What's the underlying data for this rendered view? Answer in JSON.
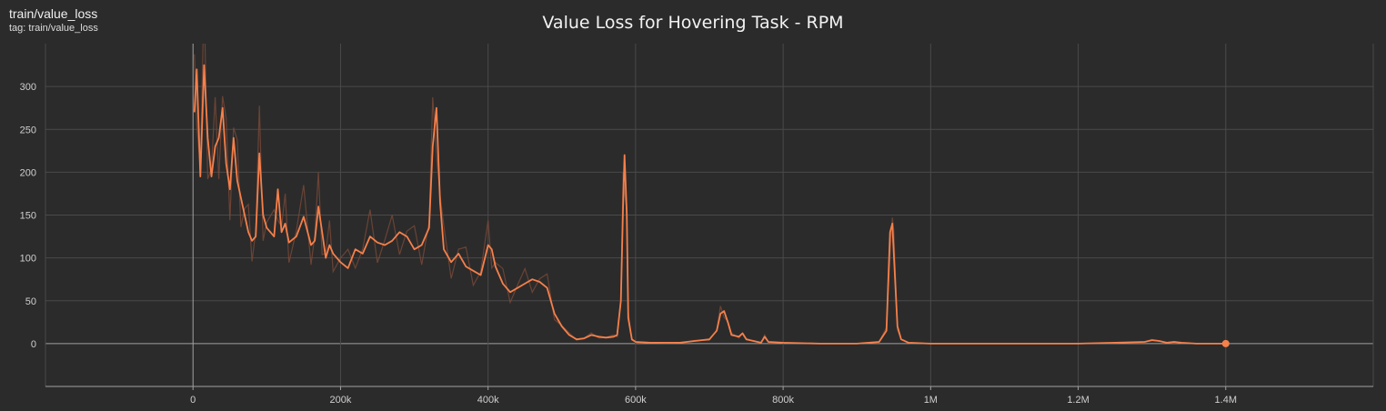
{
  "header": {
    "card_title": "train/value_loss",
    "tag_label": "tag: train/value_loss"
  },
  "chart_data": {
    "type": "line",
    "title": "Value Loss for Hovering Task - RPM",
    "xlabel": "",
    "ylabel": "",
    "xlim": [
      -200000,
      1600000
    ],
    "ylim": [
      -50,
      350
    ],
    "x_ticks": [
      0,
      200000,
      400000,
      600000,
      800000,
      1000000,
      1200000,
      1400000
    ],
    "x_tick_labels": [
      "0",
      "200k",
      "400k",
      "600k",
      "800k",
      "1M",
      "1.2M",
      "1.4M"
    ],
    "y_ticks": [
      0,
      50,
      100,
      150,
      200,
      250,
      300
    ],
    "y_tick_labels": [
      "0",
      "50",
      "100",
      "150",
      "200",
      "250",
      "300"
    ],
    "grid": true,
    "colors": {
      "line": "#f5804b",
      "raw": "#7a4a38",
      "background": "#2b2b2b",
      "grid": "#4a4a4a",
      "axis": "#a0a0a0"
    },
    "series": [
      {
        "x": [
          2000,
          5000,
          10000,
          15000,
          20000,
          25000,
          30000,
          35000,
          40000,
          45000,
          50000,
          55000,
          60000,
          65000,
          70000,
          75000,
          80000,
          85000,
          90000,
          95000,
          100000,
          110000,
          115000,
          120000,
          125000,
          130000,
          140000,
          150000,
          160000,
          165000,
          170000,
          175000,
          180000,
          185000,
          190000,
          200000,
          210000,
          220000,
          230000,
          240000,
          250000,
          260000,
          270000,
          280000,
          290000,
          300000,
          310000,
          320000,
          325000,
          330000,
          335000,
          340000,
          350000,
          360000,
          370000,
          380000,
          390000,
          400000,
          405000,
          410000,
          420000,
          430000,
          440000,
          450000,
          460000,
          470000,
          480000,
          490000,
          500000,
          510000,
          520000,
          530000,
          540000,
          550000,
          560000,
          570000,
          575000,
          580000,
          583000,
          585000,
          588000,
          590000,
          595000,
          600000,
          620000,
          640000,
          660000,
          680000,
          700000,
          710000,
          715000,
          720000,
          725000,
          730000,
          740000,
          745000,
          750000,
          760000,
          770000,
          775000,
          780000,
          800000,
          850000,
          900000,
          930000,
          940000,
          945000,
          948000,
          950000,
          955000,
          960000,
          970000,
          1000000,
          1100000,
          1200000,
          1250000,
          1290000,
          1300000,
          1310000,
          1320000,
          1330000,
          1340000,
          1360000,
          1400000
        ],
        "y": [
          270,
          320,
          195,
          325,
          240,
          195,
          230,
          240,
          275,
          210,
          180,
          240,
          190,
          170,
          150,
          130,
          120,
          125,
          222,
          150,
          135,
          125,
          180,
          130,
          140,
          118,
          125,
          148,
          115,
          120,
          160,
          130,
          100,
          115,
          105,
          95,
          88,
          110,
          105,
          125,
          118,
          115,
          120,
          130,
          125,
          110,
          115,
          135,
          230,
          275,
          165,
          110,
          95,
          105,
          90,
          85,
          80,
          115,
          110,
          90,
          70,
          60,
          65,
          70,
          75,
          72,
          65,
          35,
          20,
          10,
          5,
          6,
          10,
          8,
          7,
          8,
          10,
          50,
          160,
          220,
          150,
          30,
          5,
          2,
          1,
          1,
          1,
          3,
          5,
          15,
          35,
          38,
          25,
          10,
          8,
          12,
          5,
          3,
          1,
          8,
          2,
          1,
          0,
          0,
          2,
          15,
          130,
          140,
          105,
          20,
          5,
          1,
          0,
          0,
          0,
          1,
          2,
          4,
          3,
          1,
          2,
          1,
          0,
          0
        ]
      }
    ],
    "end_point": {
      "x": 1400000,
      "y": 0
    }
  }
}
